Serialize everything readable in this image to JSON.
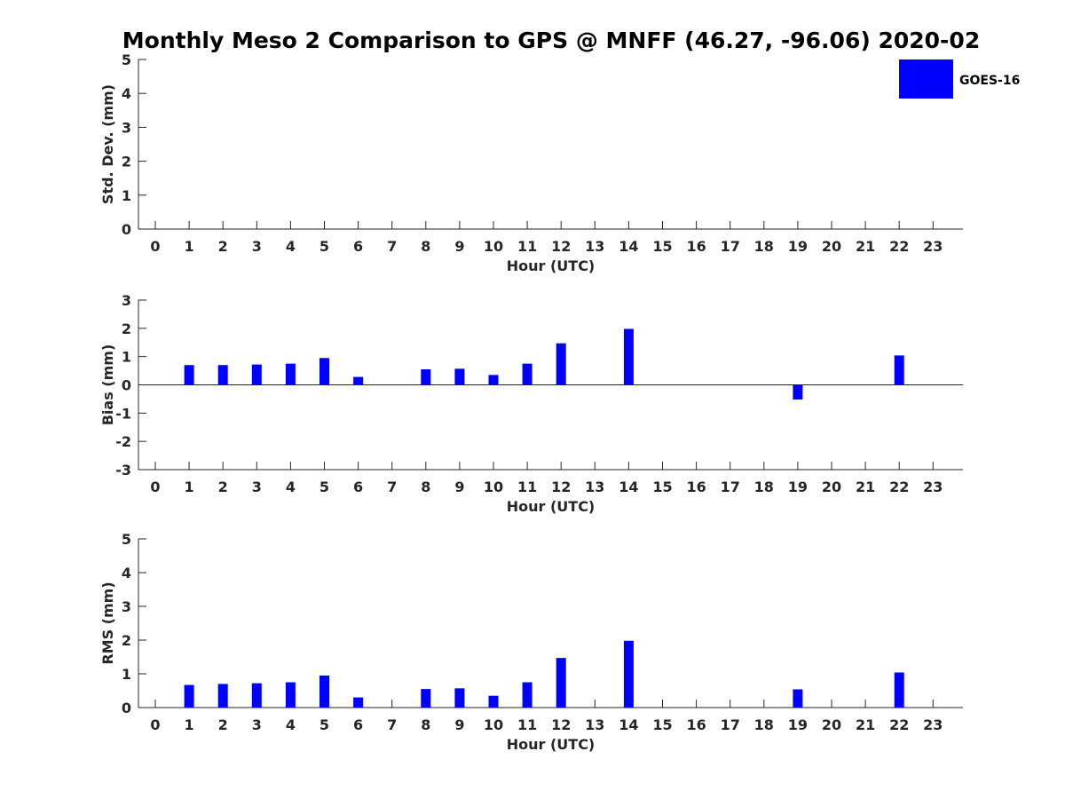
{
  "chart_data": {
    "title": "Monthly Meso 2 Comparison to GPS @ MNFF (46.27, -96.06) 2020-02",
    "legend": {
      "label": "GOES-16",
      "color": "#0000ff",
      "placement": "top-right"
    },
    "hours": [
      "0",
      "1",
      "2",
      "3",
      "4",
      "5",
      "6",
      "7",
      "8",
      "9",
      "10",
      "11",
      "12",
      "13",
      "14",
      "15",
      "16",
      "17",
      "18",
      "19",
      "20",
      "21",
      "22",
      "23"
    ],
    "panels": [
      {
        "id": "std",
        "type": "bar",
        "xlabel": "Hour (UTC)",
        "ylabel": "Std. Dev. (mm)",
        "ylim": [
          0,
          5
        ],
        "yticks": [
          "0",
          "1",
          "2",
          "3",
          "4",
          "5"
        ],
        "series": [
          {
            "name": "GOES-16",
            "values": [
              null,
              null,
              null,
              null,
              null,
              null,
              null,
              null,
              null,
              null,
              null,
              null,
              null,
              null,
              null,
              null,
              null,
              null,
              null,
              null,
              null,
              null,
              null,
              null
            ]
          }
        ]
      },
      {
        "id": "bias",
        "type": "bar",
        "xlabel": "Hour (UTC)",
        "ylabel": "Bias (mm)",
        "ylim": [
          -3,
          3
        ],
        "yticks": [
          "-3",
          "-2",
          "-1",
          "0",
          "1",
          "2",
          "3"
        ],
        "zero_line": true,
        "series": [
          {
            "name": "GOES-16",
            "values": [
              null,
              0.7,
              0.7,
              0.72,
              0.75,
              0.95,
              0.28,
              null,
              0.55,
              0.57,
              0.35,
              0.75,
              1.47,
              null,
              1.98,
              null,
              null,
              null,
              null,
              -0.52,
              null,
              null,
              1.04,
              null
            ]
          }
        ]
      },
      {
        "id": "rms",
        "type": "bar",
        "xlabel": "Hour (UTC)",
        "ylabel": "RMS (mm)",
        "ylim": [
          0,
          5
        ],
        "yticks": [
          "0",
          "1",
          "2",
          "3",
          "4",
          "5"
        ],
        "series": [
          {
            "name": "GOES-16",
            "values": [
              null,
              0.67,
              0.7,
              0.72,
              0.75,
              0.95,
              0.3,
              null,
              0.55,
              0.57,
              0.35,
              0.75,
              1.47,
              null,
              1.98,
              null,
              null,
              null,
              null,
              0.54,
              null,
              null,
              1.04,
              null
            ]
          }
        ]
      }
    ]
  }
}
